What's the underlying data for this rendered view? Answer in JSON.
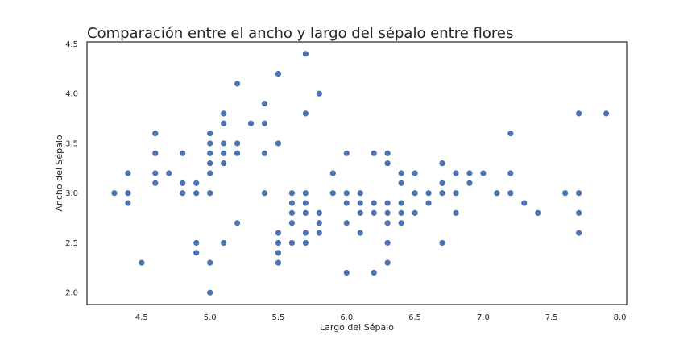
{
  "chart_data": {
    "type": "scatter",
    "title": "Comparación entre el ancho y largo del sépalo entre flores",
    "xlabel": "Largo del Sépalo",
    "ylabel": "Ancho del Sépalo",
    "xlim": [
      4.1,
      8.05
    ],
    "ylim": [
      1.88,
      4.52
    ],
    "xticks": [
      4.5,
      5.0,
      5.5,
      6.0,
      6.5,
      7.0,
      7.5,
      8.0
    ],
    "xtick_labels": [
      "4.5",
      "5.0",
      "5.5",
      "6.0",
      "6.5",
      "7.0",
      "7.5",
      "8.0"
    ],
    "yticks": [
      2.0,
      2.5,
      3.0,
      3.5,
      4.0,
      4.5
    ],
    "ytick_labels": [
      "2.0",
      "2.5",
      "3.0",
      "3.5",
      "4.0",
      "4.5"
    ],
    "grid": false,
    "marker_color": "#4C72B0",
    "points": [
      [
        4.3,
        3.0
      ],
      [
        4.4,
        3.0
      ],
      [
        4.4,
        2.9
      ],
      [
        4.4,
        3.2
      ],
      [
        4.5,
        2.3
      ],
      [
        4.6,
        3.1
      ],
      [
        4.6,
        3.4
      ],
      [
        4.6,
        3.6
      ],
      [
        4.6,
        3.2
      ],
      [
        4.7,
        3.2
      ],
      [
        4.8,
        3.4
      ],
      [
        4.8,
        3.0
      ],
      [
        4.8,
        3.1
      ],
      [
        4.9,
        3.0
      ],
      [
        4.9,
        3.1
      ],
      [
        4.9,
        2.5
      ],
      [
        4.9,
        2.4
      ],
      [
        5.0,
        3.6
      ],
      [
        5.0,
        3.4
      ],
      [
        5.0,
        3.0
      ],
      [
        5.0,
        3.5
      ],
      [
        5.0,
        3.3
      ],
      [
        5.0,
        3.2
      ],
      [
        5.0,
        2.0
      ],
      [
        5.0,
        2.3
      ],
      [
        5.1,
        3.5
      ],
      [
        5.1,
        3.8
      ],
      [
        5.1,
        3.7
      ],
      [
        5.1,
        3.3
      ],
      [
        5.1,
        3.4
      ],
      [
        5.1,
        2.5
      ],
      [
        5.2,
        3.5
      ],
      [
        5.2,
        3.4
      ],
      [
        5.2,
        4.1
      ],
      [
        5.2,
        2.7
      ],
      [
        5.3,
        3.7
      ],
      [
        5.4,
        3.9
      ],
      [
        5.4,
        3.7
      ],
      [
        5.4,
        3.4
      ],
      [
        5.4,
        3.0
      ],
      [
        5.5,
        4.2
      ],
      [
        5.5,
        3.5
      ],
      [
        5.5,
        2.3
      ],
      [
        5.5,
        2.4
      ],
      [
        5.5,
        2.5
      ],
      [
        5.5,
        2.6
      ],
      [
        5.6,
        2.9
      ],
      [
        5.6,
        3.0
      ],
      [
        5.6,
        2.5
      ],
      [
        5.6,
        2.7
      ],
      [
        5.6,
        2.8
      ],
      [
        5.7,
        4.4
      ],
      [
        5.7,
        3.8
      ],
      [
        5.7,
        2.8
      ],
      [
        5.7,
        2.6
      ],
      [
        5.7,
        3.0
      ],
      [
        5.7,
        2.9
      ],
      [
        5.7,
        2.5
      ],
      [
        5.8,
        4.0
      ],
      [
        5.8,
        2.7
      ],
      [
        5.8,
        2.6
      ],
      [
        5.8,
        2.8
      ],
      [
        5.9,
        3.0
      ],
      [
        5.9,
        3.2
      ],
      [
        6.0,
        2.2
      ],
      [
        6.0,
        2.9
      ],
      [
        6.0,
        3.4
      ],
      [
        6.0,
        2.7
      ],
      [
        6.0,
        3.0
      ],
      [
        6.1,
        2.8
      ],
      [
        6.1,
        3.0
      ],
      [
        6.1,
        2.6
      ],
      [
        6.1,
        2.9
      ],
      [
        6.2,
        2.2
      ],
      [
        6.2,
        2.9
      ],
      [
        6.2,
        3.4
      ],
      [
        6.2,
        2.8
      ],
      [
        6.3,
        3.3
      ],
      [
        6.3,
        2.5
      ],
      [
        6.3,
        2.3
      ],
      [
        6.3,
        2.7
      ],
      [
        6.3,
        2.9
      ],
      [
        6.3,
        2.8
      ],
      [
        6.3,
        3.4
      ],
      [
        6.4,
        3.2
      ],
      [
        6.4,
        2.9
      ],
      [
        6.4,
        2.7
      ],
      [
        6.4,
        2.8
      ],
      [
        6.4,
        3.1
      ],
      [
        6.5,
        2.8
      ],
      [
        6.5,
        3.0
      ],
      [
        6.5,
        3.2
      ],
      [
        6.6,
        2.9
      ],
      [
        6.6,
        3.0
      ],
      [
        6.7,
        3.1
      ],
      [
        6.7,
        3.0
      ],
      [
        6.7,
        2.5
      ],
      [
        6.7,
        3.3
      ],
      [
        6.8,
        2.8
      ],
      [
        6.8,
        3.0
      ],
      [
        6.8,
        3.2
      ],
      [
        6.9,
        3.1
      ],
      [
        6.9,
        3.2
      ],
      [
        7.0,
        3.2
      ],
      [
        7.1,
        3.0
      ],
      [
        7.2,
        3.6
      ],
      [
        7.2,
        3.2
      ],
      [
        7.2,
        3.0
      ],
      [
        7.3,
        2.9
      ],
      [
        7.4,
        2.8
      ],
      [
        7.6,
        3.0
      ],
      [
        7.7,
        3.8
      ],
      [
        7.7,
        2.6
      ],
      [
        7.7,
        2.8
      ],
      [
        7.7,
        3.0
      ],
      [
        7.9,
        3.8
      ]
    ]
  }
}
